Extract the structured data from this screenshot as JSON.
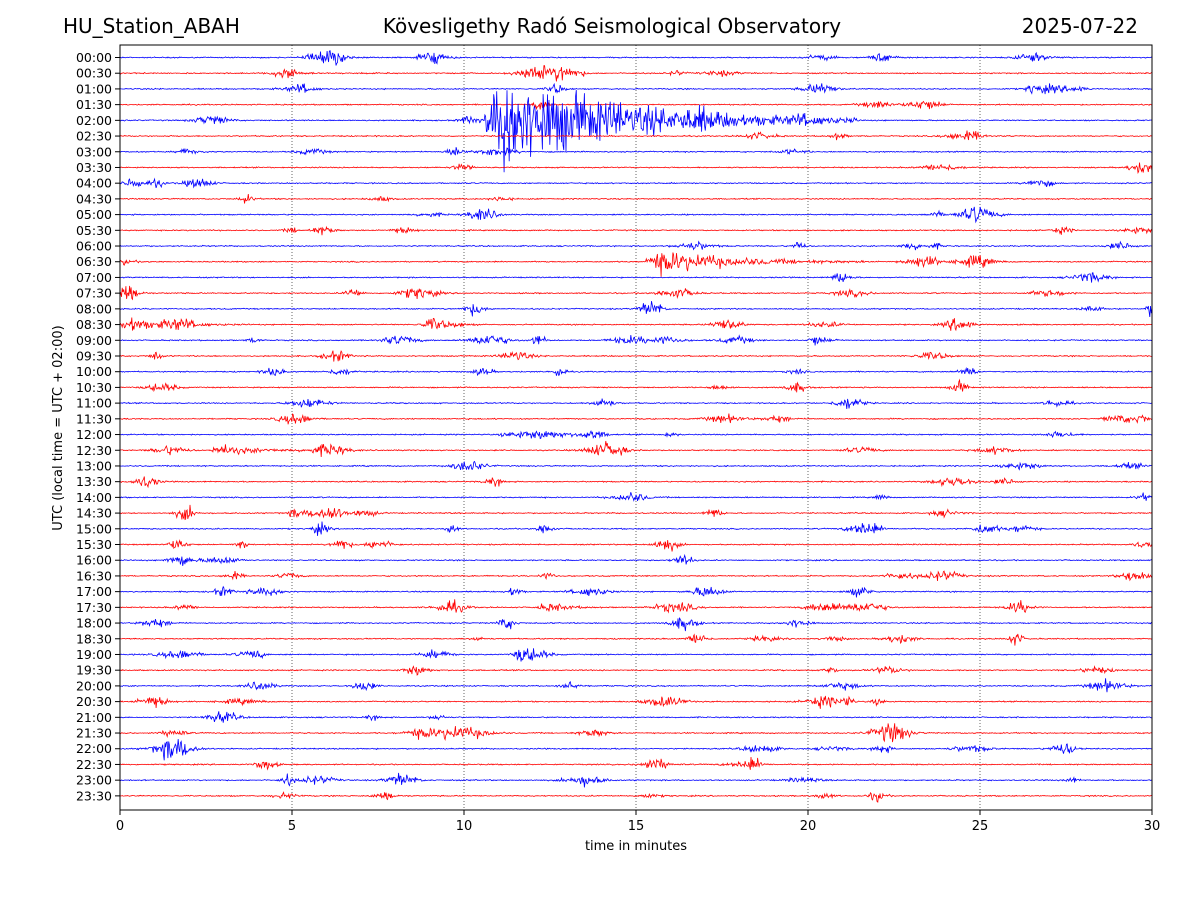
{
  "header": {
    "station": "HU_Station_ABAH",
    "observatory": "Kövesligethy Radó Seismological Observatory",
    "date": "2025-07-22"
  },
  "chart_data": {
    "type": "line",
    "title": "Kövesligethy Radó Seismological Observatory",
    "xlabel": "time in minutes",
    "ylabel": "UTC (local time = UTC + 02:00)",
    "xlim": [
      0,
      30
    ],
    "x_ticks": [
      "0",
      "5",
      "10",
      "15",
      "20",
      "25",
      "30"
    ],
    "x_tick_values": [
      0,
      5,
      10,
      15,
      20,
      25,
      30
    ],
    "grid": "vertical dotted at x ticks",
    "trace_colors": [
      "#0000ff",
      "#ff0000"
    ],
    "rows": [
      "00:00",
      "00:30",
      "01:00",
      "01:30",
      "02:00",
      "02:30",
      "03:00",
      "03:30",
      "04:00",
      "04:30",
      "05:00",
      "05:30",
      "06:00",
      "06:30",
      "07:00",
      "07:30",
      "08:00",
      "08:30",
      "09:00",
      "09:30",
      "10:00",
      "10:30",
      "11:00",
      "11:30",
      "12:00",
      "12:30",
      "13:00",
      "13:30",
      "14:00",
      "14:30",
      "15:00",
      "15:30",
      "16:00",
      "16:30",
      "17:00",
      "17:30",
      "18:00",
      "18:30",
      "19:00",
      "19:30",
      "20:00",
      "20:30",
      "21:00",
      "21:30",
      "22:00",
      "22:30",
      "23:00",
      "23:30"
    ],
    "events": [
      {
        "row": "02:00",
        "start_min": 10.6,
        "peak_min": 11.2,
        "end_min": 21.5,
        "amplitude": 6.0,
        "note": "large earthquake"
      },
      {
        "row": "06:30",
        "start_min": 15.3,
        "peak_min": 15.8,
        "end_min": 21.8,
        "amplitude": 1.4
      },
      {
        "row": "12:00",
        "start_min": 11.0,
        "peak_min": 12.4,
        "end_min": 13.8,
        "amplitude": 0.6
      },
      {
        "row": "12:30",
        "start_min": 2.6,
        "peak_min": 3.0,
        "end_min": 6.0,
        "amplitude": 0.6
      },
      {
        "row": "17:30",
        "start_min": 12.0,
        "peak_min": 12.6,
        "end_min": 14.0,
        "amplitude": 0.5
      },
      {
        "row": "08:30",
        "start_min": 0.0,
        "peak_min": 0.3,
        "end_min": 3.8,
        "amplitude": 0.6
      },
      {
        "row": "03:00",
        "start_min": 1.6,
        "peak_min": 1.9,
        "end_min": 2.6,
        "amplitude": 0.4
      },
      {
        "row": "09:00",
        "start_min": 20.0,
        "peak_min": 20.2,
        "end_min": 21.0,
        "amplitude": 0.7
      },
      {
        "row": "08:00",
        "start_min": 29.8,
        "peak_min": 29.9,
        "end_min": 30.0,
        "amplitude": 0.9
      },
      {
        "row": "11:00",
        "start_min": 26.8,
        "peak_min": 27.2,
        "end_min": 27.8,
        "amplitude": 0.5
      },
      {
        "row": "22:00",
        "start_min": 20.2,
        "peak_min": 20.8,
        "end_min": 21.6,
        "amplitude": 0.3
      },
      {
        "row": "23:30",
        "start_min": 15.0,
        "peak_min": 15.3,
        "end_min": 16.2,
        "amplitude": 0.3
      },
      {
        "row": "14:30",
        "start_min": 23.5,
        "peak_min": 24.0,
        "end_min": 24.8,
        "amplitude": 0.4
      },
      {
        "row": "11:30",
        "start_min": 28.5,
        "peak_min": 29.2,
        "end_min": 30.0,
        "amplitude": 0.5
      }
    ]
  }
}
